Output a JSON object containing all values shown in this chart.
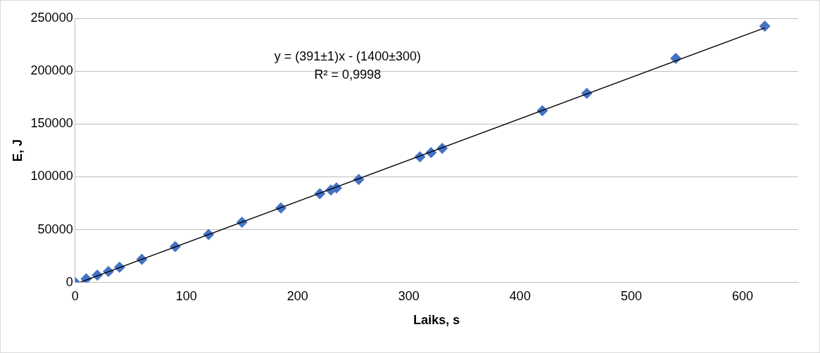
{
  "chart_data": {
    "type": "scatter",
    "xlabel": "Laiks, s",
    "ylabel": "E, J",
    "x": [
      0,
      10,
      20,
      30,
      40,
      60,
      90,
      120,
      150,
      185,
      220,
      230,
      235,
      255,
      310,
      320,
      330,
      420,
      460,
      540,
      620
    ],
    "series": [
      {
        "color": "#4472c4",
        "marker": "diamond",
        "values": [
          0,
          3500,
          7000,
          10500,
          14500,
          22000,
          34000,
          45500,
          57000,
          70500,
          84000,
          87500,
          89500,
          97500,
          119000,
          123000,
          127000,
          162500,
          179000,
          212000,
          242500
        ]
      },
      {
        "type": "line",
        "color": "#000000",
        "marker": "none",
        "x": [
          5,
          620
        ],
        "values": [
          500,
          241000
        ]
      }
    ],
    "xlim": [
      0,
      650
    ],
    "xticks": [
      0,
      100,
      200,
      300,
      400,
      500,
      600
    ],
    "ylim": [
      0,
      250000
    ],
    "yticks": [
      0,
      50000,
      100000,
      150000,
      200000,
      250000
    ],
    "grid": "y",
    "legend": false,
    "annotations": [
      "y = (391±1)x - (1400±300)",
      "R² = 0,9998"
    ]
  }
}
